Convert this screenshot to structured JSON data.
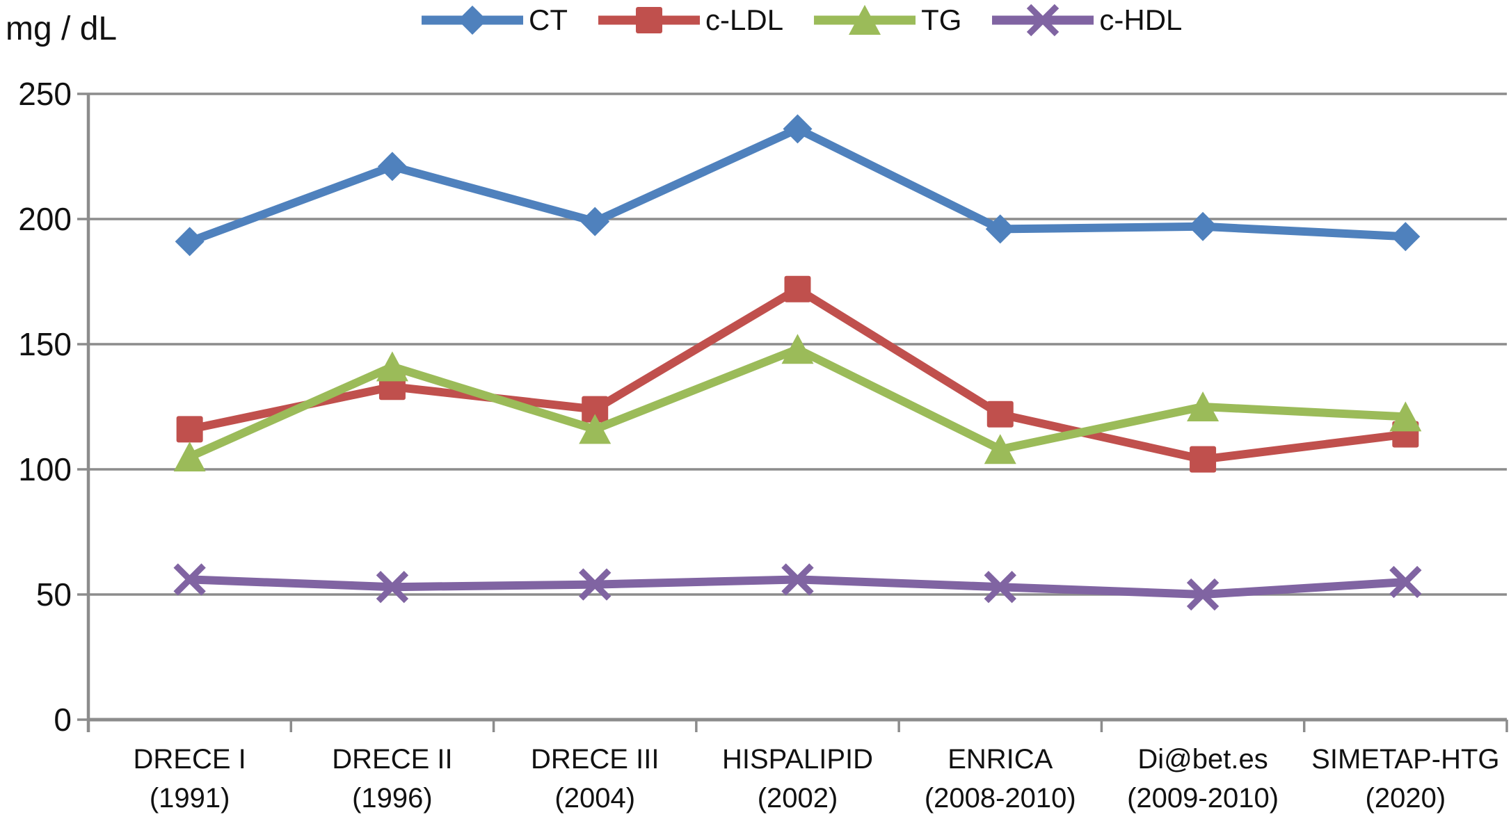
{
  "chart_data": {
    "type": "line",
    "title": "",
    "ylabel": "mg / dL",
    "xlabel": "",
    "grid": true,
    "legend_position": "top",
    "ylim": [
      0,
      250
    ],
    "ytick_interval": 50,
    "yticks": [
      0,
      50,
      100,
      150,
      200,
      250
    ],
    "gridline_color": "#8C8C8C",
    "text_color": "#111111",
    "categories": [
      "DRECE I",
      "DRECE II",
      "DRECE III",
      "HISPALIPID",
      "ENRICA",
      "Di@bet.es",
      "SIMETAP-HTG"
    ],
    "category_sublabels": [
      "(1991)",
      "(1996)",
      "(2004)",
      "(2002)",
      "(2008-2010)",
      "(2009-2010)",
      "(2020)"
    ],
    "series": [
      {
        "name": "CT",
        "color": "#4F81BD",
        "marker": "diamond",
        "values": [
          191,
          221,
          199,
          236,
          196,
          197,
          193
        ]
      },
      {
        "name": "c-LDL",
        "color": "#C0504D",
        "marker": "square",
        "values": [
          116,
          133,
          124,
          172,
          122,
          104,
          114
        ]
      },
      {
        "name": "TG",
        "color": "#9BBB59",
        "marker": "triangle",
        "values": [
          105,
          141,
          116,
          148,
          108,
          125,
          121
        ]
      },
      {
        "name": "c-HDL",
        "color": "#8064A2",
        "marker": "x",
        "values": [
          56,
          53,
          54,
          56,
          53,
          50,
          55
        ]
      }
    ]
  }
}
